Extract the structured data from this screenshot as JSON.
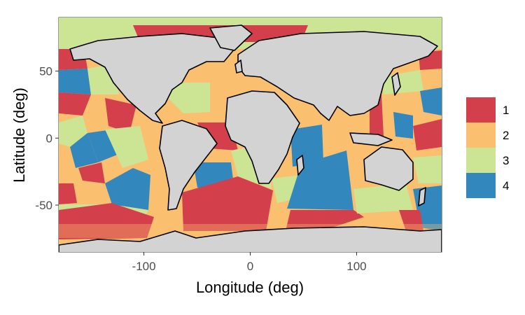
{
  "chart_data": {
    "type": "map",
    "xlabel": "Longitude (deg)",
    "ylabel": "Latitude (deg)",
    "xlim": [
      -180,
      180
    ],
    "ylim": [
      -85,
      90
    ],
    "x_ticks": [
      -100,
      0,
      100
    ],
    "y_ticks": [
      50,
      0,
      -50
    ],
    "x_tick_labels": [
      "-100",
      "0",
      "100"
    ],
    "y_tick_labels": [
      "50",
      "0",
      "-50"
    ],
    "grid": true,
    "legend_position": "right",
    "legend": [
      {
        "label": "1",
        "color": "#d33f4a"
      },
      {
        "label": "2",
        "color": "#fbbf70"
      },
      {
        "label": "3",
        "color": "#cce594"
      },
      {
        "label": "4",
        "color": "#3288bd"
      }
    ],
    "land_color": "#d3d3d3",
    "border_color": "#000000"
  }
}
